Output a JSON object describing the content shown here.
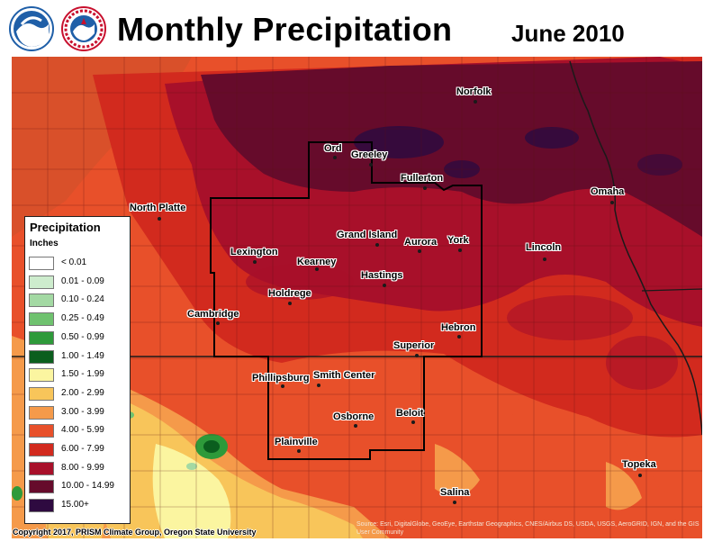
{
  "header": {
    "title": "Monthly Precipitation",
    "date": "June 2010"
  },
  "logos": [
    {
      "name": "NOAA",
      "icon": "noaa-logo-icon"
    },
    {
      "name": "National Weather Service",
      "icon": "nws-logo-icon",
      "text": "NATIONAL WEATHER SERVICE"
    }
  ],
  "legend": {
    "title": "Precipitation",
    "units": "Inches",
    "classes": [
      {
        "label": "< 0.01",
        "color": "#ffffff"
      },
      {
        "label": "0.01 - 0.09",
        "color": "#cdeccd"
      },
      {
        "label": "0.10 - 0.24",
        "color": "#a3d9a3"
      },
      {
        "label": "0.25 - 0.49",
        "color": "#6fc26f"
      },
      {
        "label": "0.50 - 0.99",
        "color": "#2e9a3a"
      },
      {
        "label": "1.00 - 1.49",
        "color": "#0b5e1e"
      },
      {
        "label": "1.50 - 1.99",
        "color": "#fbf5a0"
      },
      {
        "label": "2.00 - 2.99",
        "color": "#f8c55a"
      },
      {
        "label": "3.00 - 3.99",
        "color": "#f59a4a"
      },
      {
        "label": "4.00 - 5.99",
        "color": "#e8502a"
      },
      {
        "label": "6.00 - 7.99",
        "color": "#d22a1e"
      },
      {
        "label": "8.00 - 9.99",
        "color": "#a8102a"
      },
      {
        "label": "10.00 - 14.99",
        "color": "#660b2b"
      },
      {
        "label": "15.00+",
        "color": "#2e0a40"
      }
    ]
  },
  "cities": [
    {
      "name": "Norfolk"
    },
    {
      "name": "Ord"
    },
    {
      "name": "Greeley"
    },
    {
      "name": "Fullerton"
    },
    {
      "name": "North Platte"
    },
    {
      "name": "Omaha"
    },
    {
      "name": "Grand Island"
    },
    {
      "name": "Aurora"
    },
    {
      "name": "York"
    },
    {
      "name": "Lexington"
    },
    {
      "name": "Lincoln"
    },
    {
      "name": "Kearney"
    },
    {
      "name": "Hastings"
    },
    {
      "name": "Holdrege"
    },
    {
      "name": "Cambridge"
    },
    {
      "name": "Hebron"
    },
    {
      "name": "Superior"
    },
    {
      "name": "Phillipsburg"
    },
    {
      "name": "Smith Center"
    },
    {
      "name": "Osborne"
    },
    {
      "name": "Beloit"
    },
    {
      "name": "Plainville"
    },
    {
      "name": "Topeka"
    },
    {
      "name": "Salina"
    }
  ],
  "footer": {
    "copyright": "Copyright 2017, PRISM Climate Group, Oregon State University",
    "sources": "Source: Esri, DigitalGlobe, GeoEye, Earthstar Geographics, CNES/Airbus DS, USDA, USGS, AeroGRID, IGN, and the GIS User Community"
  }
}
